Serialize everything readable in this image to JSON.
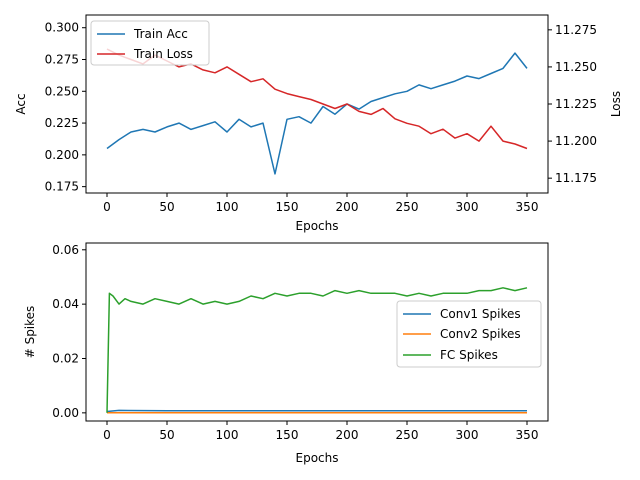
{
  "chart_data": [
    {
      "type": "line",
      "xlabel": "Epochs",
      "ylabel": "Acc",
      "ylabel_right": "Loss",
      "xlim": [
        -17.5,
        367.5
      ],
      "ylim": [
        0.17,
        0.31
      ],
      "ylim_right": [
        11.165,
        11.285
      ],
      "xticks": [
        0,
        50,
        100,
        150,
        200,
        250,
        300,
        350
      ],
      "yticks": [
        0.175,
        0.2,
        0.225,
        0.25,
        0.275,
        0.3
      ],
      "ytick_labels": [
        "0.175",
        "0.200",
        "0.225",
        "0.250",
        "0.275",
        "0.300"
      ],
      "yticks_right": [
        11.175,
        11.2,
        11.225,
        11.25,
        11.275
      ],
      "ytick_labels_right": [
        "11.175",
        "11.200",
        "11.225",
        "11.250",
        "11.275"
      ],
      "grid": false,
      "legend": "top-left",
      "series": [
        {
          "name": "Train Acc",
          "axis": "left",
          "color": "#1f77b4",
          "x": [
            0,
            10,
            20,
            30,
            40,
            50,
            60,
            70,
            80,
            90,
            100,
            110,
            120,
            130,
            140,
            150,
            160,
            170,
            180,
            190,
            200,
            210,
            220,
            230,
            240,
            250,
            260,
            270,
            280,
            290,
            300,
            310,
            320,
            330,
            340,
            350
          ],
          "y": [
            0.205,
            0.212,
            0.218,
            0.22,
            0.218,
            0.222,
            0.225,
            0.22,
            0.223,
            0.226,
            0.218,
            0.228,
            0.222,
            0.225,
            0.185,
            0.228,
            0.23,
            0.225,
            0.238,
            0.232,
            0.24,
            0.236,
            0.242,
            0.245,
            0.248,
            0.25,
            0.255,
            0.252,
            0.255,
            0.258,
            0.262,
            0.26,
            0.264,
            0.268,
            0.28,
            0.268
          ]
        },
        {
          "name": "Train Loss",
          "axis": "right",
          "color": "#d62728",
          "x": [
            0,
            10,
            20,
            30,
            40,
            50,
            60,
            70,
            80,
            90,
            100,
            110,
            120,
            130,
            140,
            150,
            160,
            170,
            180,
            190,
            200,
            210,
            220,
            230,
            240,
            250,
            260,
            270,
            280,
            290,
            300,
            310,
            320,
            330,
            340,
            350
          ],
          "y": [
            11.262,
            11.258,
            11.255,
            11.252,
            11.258,
            11.254,
            11.25,
            11.252,
            11.248,
            11.246,
            11.25,
            11.245,
            11.24,
            11.242,
            11.235,
            11.232,
            11.23,
            11.228,
            11.225,
            11.222,
            11.225,
            11.22,
            11.218,
            11.222,
            11.215,
            11.212,
            11.21,
            11.205,
            11.208,
            11.202,
            11.205,
            11.2,
            11.21,
            11.2,
            11.198,
            11.195
          ]
        }
      ]
    },
    {
      "type": "line",
      "xlabel": "Epochs",
      "ylabel": "# Spikes",
      "xlim": [
        -17.5,
        367.5
      ],
      "ylim": [
        -0.003,
        0.0625
      ],
      "xticks": [
        0,
        50,
        100,
        150,
        200,
        250,
        300,
        350
      ],
      "yticks": [
        0.0,
        0.02,
        0.04,
        0.06
      ],
      "ytick_labels": [
        "0.00",
        "0.02",
        "0.04",
        "0.06"
      ],
      "grid": false,
      "legend": "center-right",
      "series": [
        {
          "name": "Conv1 Spikes",
          "color": "#1f77b4",
          "x": [
            0,
            10,
            50,
            100,
            150,
            200,
            250,
            300,
            350
          ],
          "y": [
            0.0005,
            0.0009,
            0.0008,
            0.0008,
            0.0008,
            0.0008,
            0.0008,
            0.0008,
            0.0008
          ]
        },
        {
          "name": "Conv2 Spikes",
          "color": "#ff7f0e",
          "x": [
            0,
            50,
            100,
            150,
            200,
            250,
            300,
            350
          ],
          "y": [
            0.0,
            0.0,
            0.0,
            0.0,
            0.0,
            0.0,
            0.0,
            0.0
          ]
        },
        {
          "name": "FC Spikes",
          "color": "#2ca02c",
          "x": [
            0,
            2,
            5,
            10,
            15,
            20,
            30,
            40,
            50,
            60,
            70,
            80,
            90,
            100,
            110,
            120,
            130,
            140,
            150,
            160,
            170,
            180,
            190,
            200,
            210,
            220,
            230,
            240,
            250,
            260,
            270,
            280,
            290,
            300,
            310,
            320,
            330,
            340,
            350
          ],
          "y": [
            0.0,
            0.044,
            0.043,
            0.04,
            0.042,
            0.041,
            0.04,
            0.042,
            0.041,
            0.04,
            0.042,
            0.04,
            0.041,
            0.04,
            0.041,
            0.043,
            0.042,
            0.044,
            0.043,
            0.044,
            0.044,
            0.043,
            0.045,
            0.044,
            0.045,
            0.044,
            0.044,
            0.044,
            0.043,
            0.044,
            0.043,
            0.044,
            0.044,
            0.044,
            0.045,
            0.045,
            0.046,
            0.045,
            0.046
          ]
        }
      ]
    }
  ]
}
